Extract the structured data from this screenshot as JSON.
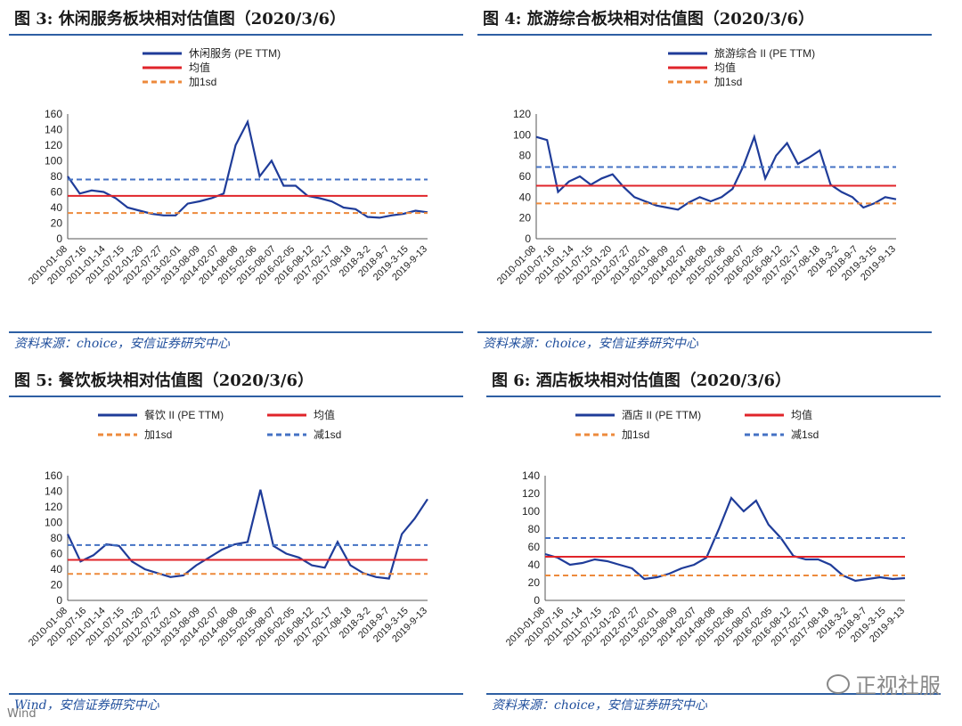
{
  "page": {
    "watermark": "正视社服",
    "brand": "Wind"
  },
  "chart_data": [
    {
      "type": "line",
      "title": "图 3:  休闲服务板块相对估值图（2020/3/6）",
      "source": "资料来源：choice，安信证券研究中心",
      "x_tick_labels": [
        "2010-01-08",
        "2010-07-16",
        "2011-01-14",
        "2011-07-15",
        "2012-01-20",
        "2012-07-27",
        "2013-02-01",
        "2013-08-09",
        "2014-02-07",
        "2014-08-08",
        "2015-02-06",
        "2015-08-07",
        "2016-02-05",
        "2016-08-12",
        "2017-02-17",
        "2017-08-18",
        "2018-3-2",
        "2018-9-7",
        "2019-3-15",
        "2019-9-13"
      ],
      "ylim": [
        0,
        160
      ],
      "yticks": [
        0,
        20,
        40,
        60,
        80,
        100,
        120,
        140,
        160
      ],
      "legend_placement": "top",
      "series": [
        {
          "name": "休闲服务 (PE TTM)",
          "kind": "line",
          "color": "#1f3c99",
          "values": [
            80,
            58,
            62,
            60,
            52,
            40,
            36,
            32,
            30,
            30,
            45,
            48,
            52,
            58,
            120,
            150,
            80,
            100,
            68,
            68,
            55,
            52,
            48,
            40,
            38,
            28,
            27,
            30,
            32,
            36,
            34
          ]
        },
        {
          "name": "均值",
          "kind": "hline",
          "color": "#e0242a",
          "value": 55
        },
        {
          "name": "加1sd",
          "kind": "hline",
          "color": "#ed8a3c",
          "value": 33
        },
        {
          "name": "",
          "kind": "hline",
          "color": "#4472c4",
          "value": 76
        }
      ]
    },
    {
      "type": "line",
      "title": "图 4:  旅游综合板块相对估值图（2020/3/6）",
      "source": "资料来源：choice，安信证券研究中心",
      "x_tick_labels": [
        "2010-01-08",
        "2010-07-16",
        "2011-01-14",
        "2011-07-15",
        "2012-01-20",
        "2012-07-27",
        "2013-02-01",
        "2013-08-09",
        "2014-02-07",
        "2014-08-08",
        "2015-02-06",
        "2015-08-07",
        "2016-02-05",
        "2016-08-12",
        "2017-02-17",
        "2017-08-18",
        "2018-3-2",
        "2018-9-7",
        "2019-3-15",
        "2019-9-13"
      ],
      "ylim": [
        0,
        120
      ],
      "yticks": [
        0,
        20,
        40,
        60,
        80,
        100,
        120
      ],
      "legend_placement": "top-right",
      "series": [
        {
          "name": "旅游综合 II (PE TTM)",
          "kind": "line",
          "color": "#1f3c99",
          "values": [
            98,
            95,
            45,
            55,
            60,
            52,
            58,
            62,
            50,
            40,
            36,
            32,
            30,
            28,
            35,
            40,
            36,
            40,
            48,
            70,
            98,
            58,
            80,
            92,
            72,
            78,
            85,
            52,
            45,
            40,
            30,
            34,
            40,
            38
          ]
        },
        {
          "name": "均值",
          "kind": "hline",
          "color": "#e0242a",
          "value": 51
        },
        {
          "name": "加1sd",
          "kind": "hline",
          "color": "#ed8a3c",
          "value": 34
        },
        {
          "name": "",
          "kind": "hline",
          "color": "#4472c4",
          "value": 69
        }
      ]
    },
    {
      "type": "line",
      "title": "图 5:  餐饮板块相对估值图（2020/3/6）",
      "source": "Wind，安信证券研究中心",
      "x_tick_labels": [
        "2010-01-08",
        "2010-07-16",
        "2011-01-14",
        "2011-07-15",
        "2012-01-20",
        "2012-07-27",
        "2013-02-01",
        "2013-08-09",
        "2014-02-07",
        "2014-08-08",
        "2015-02-06",
        "2015-08-07",
        "2016-02-05",
        "2016-08-12",
        "2017-02-17",
        "2017-08-18",
        "2018-3-2",
        "2018-9-7",
        "2019-3-15",
        "2019-9-13"
      ],
      "ylim": [
        0,
        160
      ],
      "yticks": [
        0,
        20,
        40,
        60,
        80,
        100,
        120,
        140,
        160
      ],
      "legend_placement": "top",
      "series": [
        {
          "name": "餐饮 II (PE TTM)",
          "kind": "line",
          "color": "#1f3c99",
          "values": [
            85,
            50,
            58,
            72,
            70,
            50,
            40,
            35,
            30,
            32,
            45,
            55,
            65,
            72,
            75,
            142,
            70,
            60,
            55,
            45,
            42,
            75,
            45,
            35,
            30,
            28,
            85,
            105,
            130
          ]
        },
        {
          "name": "均值",
          "kind": "hline",
          "color": "#e0242a",
          "value": 52
        },
        {
          "name": "加1sd",
          "kind": "hline",
          "color": "#ed8a3c",
          "value": 34
        },
        {
          "name": "减1sd",
          "kind": "hline",
          "color": "#4472c4",
          "value": 71
        }
      ]
    },
    {
      "type": "line",
      "title": "图 6:  酒店板块相对估值图（2020/3/6）",
      "source": "资料来源：choice，安信证券研究中心",
      "x_tick_labels": [
        "2010-01-08",
        "2010-07-16",
        "2011-01-14",
        "2011-07-15",
        "2012-01-20",
        "2012-07-27",
        "2013-02-01",
        "2013-08-09",
        "2014-02-07",
        "2014-08-08",
        "2015-02-06",
        "2015-08-07",
        "2016-02-05",
        "2016-08-12",
        "2017-02-17",
        "2017-08-18",
        "2018-3-2",
        "2018-9-7",
        "2019-3-15",
        "2019-9-13"
      ],
      "ylim": [
        0,
        140
      ],
      "yticks": [
        0,
        20,
        40,
        60,
        80,
        100,
        120,
        140
      ],
      "legend_placement": "top",
      "series": [
        {
          "name": "酒店 II (PE TTM)",
          "kind": "line",
          "color": "#1f3c99",
          "values": [
            52,
            48,
            40,
            42,
            46,
            44,
            40,
            36,
            24,
            26,
            30,
            36,
            40,
            48,
            80,
            115,
            100,
            112,
            85,
            70,
            50,
            46,
            46,
            40,
            28,
            22,
            24,
            26,
            24,
            25
          ]
        },
        {
          "name": "均值",
          "kind": "hline",
          "color": "#e0242a",
          "value": 49
        },
        {
          "name": "加1sd",
          "kind": "hline",
          "color": "#ed8a3c",
          "value": 28
        },
        {
          "name": "减1sd",
          "kind": "hline",
          "color": "#4472c4",
          "value": 70
        }
      ]
    }
  ]
}
